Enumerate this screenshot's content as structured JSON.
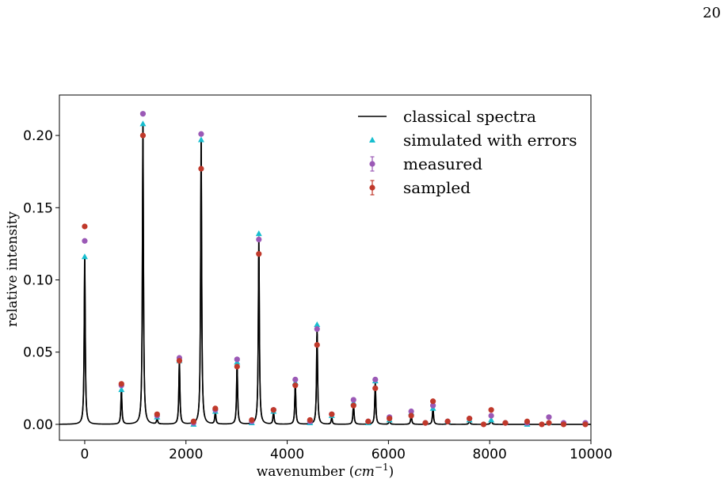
{
  "page": {
    "number": "20"
  },
  "chart_data": {
    "type": "line+scatter",
    "xlabel": "wavenumber (cm",
    "xlabel_superscript": "−1",
    "xlabel_suffix": ")",
    "ylabel": "relative intensity",
    "xlim": [
      -500,
      10000
    ],
    "ylim": [
      -0.011,
      0.228
    ],
    "xticks": [
      0,
      2000,
      4000,
      6000,
      8000,
      10000
    ],
    "xtick_labels": [
      "0",
      "2000",
      "4000",
      "6000",
      "8000",
      "10000"
    ],
    "yticks": [
      0.0,
      0.05,
      0.1,
      0.15,
      0.2
    ],
    "ytick_labels": [
      "0.00",
      "0.05",
      "0.10",
      "0.15",
      "0.20"
    ],
    "legend_position": "top-right",
    "line_width_param": 12,
    "series": [
      {
        "name": "classical spectra",
        "kind": "line",
        "color": "#000000",
        "peaks": [
          [
            0,
            0.117
          ],
          [
            725,
            0.024
          ],
          [
            1150,
            0.208
          ],
          [
            1430,
            0.004
          ],
          [
            1870,
            0.045
          ],
          [
            2300,
            0.197
          ],
          [
            2580,
            0.009
          ],
          [
            3010,
            0.043
          ],
          [
            3440,
            0.13
          ],
          [
            3730,
            0.009
          ],
          [
            4160,
            0.029
          ],
          [
            4590,
            0.068
          ],
          [
            4880,
            0.005
          ],
          [
            5310,
            0.015
          ],
          [
            5740,
            0.029
          ],
          [
            6020,
            0.003
          ],
          [
            6450,
            0.007
          ],
          [
            6880,
            0.012
          ],
          [
            7170,
            0.002
          ],
          [
            7600,
            0.003
          ],
          [
            8030,
            0.004
          ]
        ]
      },
      {
        "name": "simulated with errors",
        "kind": "scatter",
        "marker": "triangle",
        "color": "#17becf",
        "points": [
          [
            0,
            0.116
          ],
          [
            725,
            0.024
          ],
          [
            1150,
            0.208
          ],
          [
            1430,
            0.005
          ],
          [
            1870,
            0.044
          ],
          [
            2150,
            0.0
          ],
          [
            2300,
            0.197
          ],
          [
            2580,
            0.009
          ],
          [
            3010,
            0.043
          ],
          [
            3300,
            0.001
          ],
          [
            3440,
            0.132
          ],
          [
            3730,
            0.009
          ],
          [
            4160,
            0.029
          ],
          [
            4450,
            0.001
          ],
          [
            4590,
            0.069
          ],
          [
            4880,
            0.006
          ],
          [
            5310,
            0.015
          ],
          [
            5600,
            0.001
          ],
          [
            5740,
            0.03
          ],
          [
            6020,
            0.003
          ],
          [
            6450,
            0.008
          ],
          [
            6880,
            0.011
          ],
          [
            7170,
            0.002
          ],
          [
            7600,
            0.003
          ],
          [
            8030,
            0.003
          ],
          [
            8740,
            0.0
          ],
          [
            9170,
            0.001
          ]
        ]
      },
      {
        "name": "measured",
        "kind": "scatter",
        "marker": "circle",
        "error_bars": true,
        "color": "#9b59b6",
        "points": [
          [
            0,
            0.127
          ],
          [
            725,
            0.027
          ],
          [
            1150,
            0.215
          ],
          [
            1430,
            0.006
          ],
          [
            1870,
            0.046
          ],
          [
            2150,
            0.001
          ],
          [
            2300,
            0.201
          ],
          [
            2580,
            0.01
          ],
          [
            3010,
            0.045
          ],
          [
            3300,
            0.002
          ],
          [
            3440,
            0.128
          ],
          [
            3730,
            0.01
          ],
          [
            4160,
            0.031
          ],
          [
            4450,
            0.002
          ],
          [
            4590,
            0.066
          ],
          [
            4880,
            0.007
          ],
          [
            5310,
            0.017
          ],
          [
            5600,
            0.002
          ],
          [
            5740,
            0.031
          ],
          [
            6020,
            0.005
          ],
          [
            6450,
            0.009
          ],
          [
            6730,
            0.001
          ],
          [
            6880,
            0.013
          ],
          [
            7170,
            0.002
          ],
          [
            7600,
            0.004
          ],
          [
            8030,
            0.006
          ],
          [
            8310,
            0.001
          ],
          [
            8740,
            0.001
          ],
          [
            9170,
            0.005
          ],
          [
            9460,
            0.001
          ],
          [
            9890,
            0.001
          ]
        ]
      },
      {
        "name": "sampled",
        "kind": "scatter",
        "marker": "circle",
        "error_bars": true,
        "color": "#c0392b",
        "points": [
          [
            0,
            0.137
          ],
          [
            725,
            0.028
          ],
          [
            1150,
            0.2
          ],
          [
            1430,
            0.007
          ],
          [
            1870,
            0.044
          ],
          [
            2150,
            0.002
          ],
          [
            2300,
            0.177
          ],
          [
            2580,
            0.011
          ],
          [
            3010,
            0.04
          ],
          [
            3300,
            0.003
          ],
          [
            3440,
            0.118
          ],
          [
            3730,
            0.01
          ],
          [
            4160,
            0.027
          ],
          [
            4450,
            0.003
          ],
          [
            4590,
            0.055
          ],
          [
            4880,
            0.007
          ],
          [
            5310,
            0.013
          ],
          [
            5600,
            0.002
          ],
          [
            5740,
            0.025
          ],
          [
            6020,
            0.004
          ],
          [
            6450,
            0.006
          ],
          [
            6730,
            0.001
          ],
          [
            6880,
            0.016
          ],
          [
            7170,
            0.002
          ],
          [
            7600,
            0.004
          ],
          [
            7880,
            0.0
          ],
          [
            8030,
            0.01
          ],
          [
            8310,
            0.001
          ],
          [
            8740,
            0.002
          ],
          [
            9030,
            0.0
          ],
          [
            9170,
            0.001
          ],
          [
            9460,
            0.0
          ],
          [
            9890,
            0.0
          ]
        ]
      }
    ]
  }
}
